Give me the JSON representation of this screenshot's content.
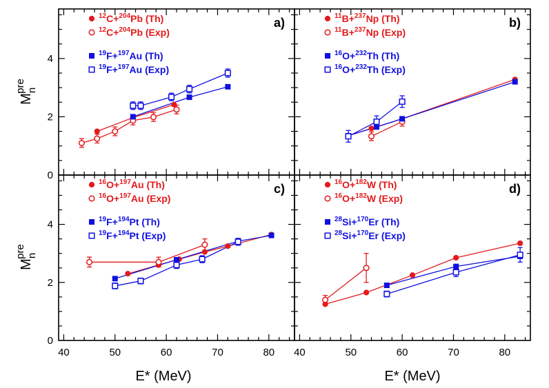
{
  "colors": {
    "th_red": "#e31a1c",
    "th_blue": "#1010e0",
    "axis": "#000000"
  },
  "axes": {
    "xlabel": "E* (MeV)",
    "ylabel_main": "M",
    "ylabel_sub": "n",
    "ylabel_sup": "pre",
    "x_ticks": [
      "40",
      "50",
      "60",
      "70",
      "80"
    ],
    "y_ticks": [
      "0",
      "2",
      "4"
    ]
  },
  "chart_data": [
    {
      "type": "scatter",
      "panel": "a)",
      "xlim": [
        39,
        85
      ],
      "ylim": [
        0,
        5.7
      ],
      "series": [
        {
          "name": "12C+204Pb (Th)",
          "color": "red",
          "marker": "circle-filled",
          "legend": {
            "pre": "",
            "A1": "12",
            "E1": "C+",
            "A2": "204",
            "E2": "Pb",
            "suf": " (Th)"
          },
          "x": [
            46.5,
            53.5,
            61.5
          ],
          "y": [
            1.5,
            1.97,
            2.42
          ],
          "err": []
        },
        {
          "name": "12C+204Pb (Exp)",
          "color": "red",
          "marker": "circle-open",
          "legend": {
            "pre": "",
            "A1": "12",
            "E1": "C+",
            "A2": "204",
            "E2": "Pb",
            "suf": " (Exp)"
          },
          "x": [
            43.5,
            46.5,
            50,
            53.5,
            57.5,
            62
          ],
          "y": [
            1.1,
            1.25,
            1.5,
            1.87,
            1.99,
            2.25
          ],
          "err": [
            0.15,
            0.15,
            0.15,
            0.15,
            0.15,
            0.15
          ]
        },
        {
          "name": "19F+197Au (Th)",
          "color": "blue",
          "marker": "square-filled",
          "legend": {
            "pre": "",
            "A1": "19",
            "E1": "F+",
            "A2": "197",
            "E2": "Au",
            "suf": " (Th)"
          },
          "x": [
            53.5,
            64.5,
            72
          ],
          "y": [
            2.0,
            2.67,
            3.03
          ],
          "err": []
        },
        {
          "name": "19F+197Au (Exp)",
          "color": "blue",
          "marker": "square-open",
          "legend": {
            "pre": "",
            "A1": "19",
            "E1": "F+",
            "A2": "197",
            "E2": "Au",
            "suf": " (Exp)"
          },
          "x": [
            53.5,
            55,
            61,
            64.5,
            72
          ],
          "y": [
            2.38,
            2.38,
            2.68,
            2.95,
            3.5
          ],
          "err": [
            0.13,
            0.13,
            0.13,
            0.13,
            0.14
          ]
        }
      ]
    },
    {
      "type": "scatter",
      "panel": "b)",
      "xlim": [
        39,
        85
      ],
      "ylim": [
        0,
        5.7
      ],
      "series": [
        {
          "name": "11B+237Np (Th)",
          "color": "red",
          "marker": "circle-filled",
          "legend": {
            "pre": "",
            "A1": "11",
            "E1": "B+",
            "A2": "237",
            "E2": "Np",
            "suf": " (Th)"
          },
          "x": [
            49.5,
            54,
            60,
            82
          ],
          "y": [
            1.35,
            1.6,
            1.93,
            3.28
          ],
          "err": []
        },
        {
          "name": "11B+237Np (Exp)",
          "color": "red",
          "marker": "circle-open",
          "legend": {
            "pre": "",
            "A1": "11",
            "E1": "B+",
            "A2": "237",
            "E2": "Np",
            "suf": " (Exp)"
          },
          "x": [
            54,
            60
          ],
          "y": [
            1.33,
            1.83
          ],
          "err": [
            0.15,
            0.15
          ]
        },
        {
          "name": "16O+232Th (Th)",
          "color": "blue",
          "marker": "square-filled",
          "legend": {
            "pre": "",
            "A1": "16",
            "E1": "O+",
            "A2": "232",
            "E2": "Th",
            "suf": " (Th)"
          },
          "x": [
            49.5,
            55,
            60,
            82
          ],
          "y": [
            1.35,
            1.65,
            1.93,
            3.2
          ],
          "err": []
        },
        {
          "name": "16O+232Th (Exp)",
          "color": "blue",
          "marker": "square-open",
          "legend": {
            "pre": "",
            "A1": "16",
            "E1": "O+",
            "A2": "232",
            "E2": "Th",
            "suf": " (Exp)"
          },
          "x": [
            49.5,
            55,
            60
          ],
          "y": [
            1.33,
            1.83,
            2.52
          ],
          "err": [
            0.2,
            0.2,
            0.2
          ]
        }
      ]
    },
    {
      "type": "scatter",
      "panel": "c)",
      "xlim": [
        39,
        85
      ],
      "ylim": [
        0,
        5.7
      ],
      "series": [
        {
          "name": "16O+197Au (Th)",
          "color": "red",
          "marker": "circle-filled",
          "legend": {
            "pre": "",
            "A1": "16",
            "E1": "O+",
            "A2": "197",
            "E2": "Au",
            "suf": " (Th)"
          },
          "x": [
            52.5,
            58.5,
            62.5,
            67.5,
            72,
            80.5
          ],
          "y": [
            2.3,
            2.6,
            2.8,
            3.05,
            3.25,
            3.65
          ],
          "err": []
        },
        {
          "name": "16O+197Au (Exp)",
          "color": "red",
          "marker": "circle-open",
          "legend": {
            "pre": "",
            "A1": "16",
            "E1": "O+",
            "A2": "197",
            "E2": "Au",
            "suf": " (Exp)"
          },
          "x": [
            45,
            58.5,
            67.5
          ],
          "y": [
            2.7,
            2.7,
            3.3
          ],
          "err": [
            0.17,
            0.17,
            0.2
          ]
        },
        {
          "name": "19F+194Pt (Th)",
          "color": "blue",
          "marker": "square-filled",
          "legend": {
            "pre": "",
            "A1": "19",
            "E1": "F+",
            "A2": "194",
            "E2": "Pt",
            "suf": " (Th)"
          },
          "x": [
            50,
            62,
            74,
            80.5
          ],
          "y": [
            2.13,
            2.78,
            3.42,
            3.62
          ],
          "err": []
        },
        {
          "name": "19F+194Pt (Exp)",
          "color": "blue",
          "marker": "square-open",
          "legend": {
            "pre": "",
            "A1": "19",
            "E1": "F+",
            "A2": "194",
            "E2": "Pt",
            "suf": " (Exp)"
          },
          "x": [
            50,
            55,
            62,
            67,
            74
          ],
          "y": [
            1.88,
            2.05,
            2.6,
            2.8,
            3.4
          ],
          "err": [
            0.1,
            0.1,
            0.12,
            0.12,
            0.12
          ]
        }
      ]
    },
    {
      "type": "scatter",
      "panel": "d)",
      "xlim": [
        39,
        85
      ],
      "ylim": [
        0,
        5.7
      ],
      "series": [
        {
          "name": "16O+182W (Th)",
          "color": "red",
          "marker": "circle-filled",
          "legend": {
            "pre": "",
            "A1": "16",
            "E1": "O+",
            "A2": "182",
            "E2": "W",
            "suf": " (Th)"
          },
          "x": [
            45,
            53,
            62,
            70.5,
            83
          ],
          "y": [
            1.25,
            1.65,
            2.25,
            2.85,
            3.35
          ],
          "err": []
        },
        {
          "name": "16O+182W (Exp)",
          "color": "red",
          "marker": "circle-open",
          "legend": {
            "pre": "",
            "A1": "16",
            "E1": "O+",
            "A2": "182",
            "E2": "W",
            "suf": " (Exp)"
          },
          "x": [
            45,
            53
          ],
          "y": [
            1.4,
            2.5
          ],
          "err": [
            0.15,
            0.5
          ]
        },
        {
          "name": "28Si+170Er (Th)",
          "color": "blue",
          "marker": "square-filled",
          "legend": {
            "pre": "",
            "A1": "28",
            "E1": "Si+",
            "A2": "170",
            "E2": "Er",
            "suf": " (Th)"
          },
          "x": [
            57,
            70.5,
            83
          ],
          "y": [
            1.9,
            2.55,
            2.9
          ],
          "err": []
        },
        {
          "name": "28Si+170Er (Exp)",
          "color": "blue",
          "marker": "square-open",
          "legend": {
            "pre": "",
            "A1": "28",
            "E1": "Si+",
            "A2": "170",
            "E2": "Er",
            "suf": " (Exp)"
          },
          "x": [
            57,
            70.5,
            83
          ],
          "y": [
            1.6,
            2.35,
            2.95
          ],
          "err": [
            0.1,
            0.15,
            0.25
          ]
        }
      ]
    }
  ]
}
